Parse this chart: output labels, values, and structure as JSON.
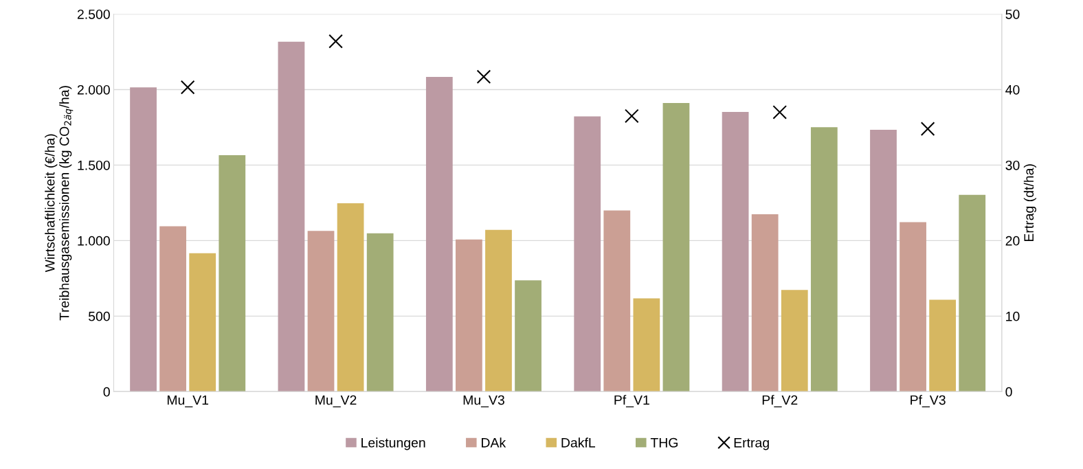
{
  "chart_data": {
    "type": "bar",
    "categories": [
      "Mu_V1",
      "Mu_V2",
      "Mu_V3",
      "Pf_V1",
      "Pf_V2",
      "Pf_V3"
    ],
    "ylabel": "Wirtschaftlichkeit (€/ha)\nTreibhausgasemissionen (kg CO$_{2äq}$/ha)",
    "y2label": "Ertrag (dt/ha)",
    "ylim": [
      0,
      2500
    ],
    "yticks": [
      0,
      {
        "value": 500,
        "label": "500"
      },
      {
        "value": 1000,
        "label": "1.000"
      },
      {
        "value": 1500,
        "label": "1.500"
      },
      {
        "value": 2000,
        "label": "2.000"
      },
      {
        "value": 2500,
        "label": "2.500"
      }
    ],
    "y2lim": [
      0,
      50
    ],
    "y2ticks": [
      0,
      10,
      20,
      30,
      40,
      50
    ],
    "grid": "y",
    "legend": "bottom",
    "series": [
      {
        "name": "Leistungen",
        "color": "#bc9aa3",
        "values": [
          2015,
          2317,
          2084,
          1823,
          1852,
          1734
        ]
      },
      {
        "name": "DAk",
        "color": "#cb9f94",
        "values": [
          1095,
          1064,
          1007,
          1200,
          1174,
          1122
        ]
      },
      {
        "name": "DakfL",
        "color": "#d6b761",
        "values": [
          917,
          1247,
          1071,
          618,
          673,
          608
        ]
      },
      {
        "name": "THG",
        "color": "#a2ad76",
        "values": [
          1565,
          1048,
          737,
          1911,
          1751,
          1303
        ]
      },
      {
        "name": "Ertrag",
        "type": "scatter",
        "axis": "y2",
        "marker": "cross",
        "color": "#000000",
        "values": [
          40.3,
          46.4,
          41.7,
          36.5,
          37.0,
          34.8
        ]
      }
    ]
  }
}
